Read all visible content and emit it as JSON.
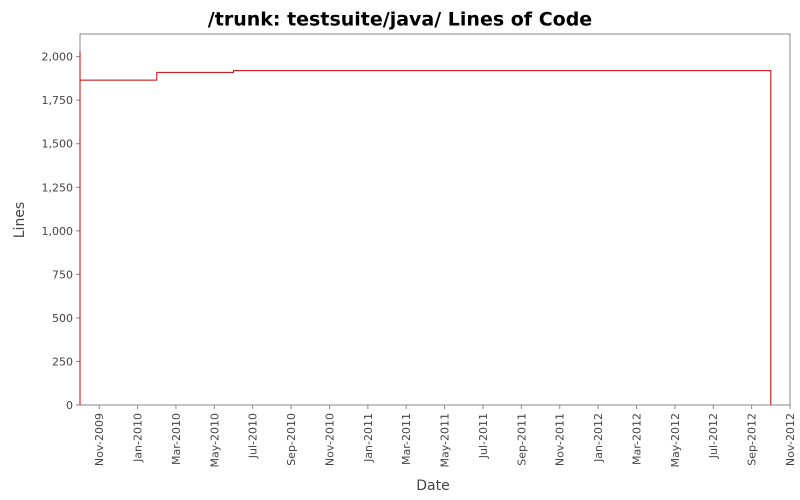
{
  "chart_data": {
    "type": "step",
    "title": "/trunk: testsuite/java/ Lines of Code",
    "x_label": "Date",
    "y_label": "Lines",
    "series": [
      {
        "name": "Lines",
        "color": "#cc0000",
        "x": [
          "2009-10",
          "2009-10",
          "2009-10",
          "2009-10",
          "2010-02",
          "2010-06",
          "2012-10"
        ],
        "values": [
          0,
          1970,
          2030,
          1865,
          1910,
          1920,
          0
        ]
      }
    ],
    "xlim": [
      "2009-10",
      "2012-11"
    ],
    "xticks": [
      {
        "value": "2009-11",
        "label": "Nov-2009"
      },
      {
        "value": "2010-01",
        "label": "Jan-2010"
      },
      {
        "value": "2010-03",
        "label": "Mar-2010"
      },
      {
        "value": "2010-05",
        "label": "May-2010"
      },
      {
        "value": "2010-07",
        "label": "Jul-2010"
      },
      {
        "value": "2010-09",
        "label": "Sep-2010"
      },
      {
        "value": "2010-11",
        "label": "Nov-2010"
      },
      {
        "value": "2011-01",
        "label": "Jan-2011"
      },
      {
        "value": "2011-03",
        "label": "Mar-2011"
      },
      {
        "value": "2011-05",
        "label": "May-2011"
      },
      {
        "value": "2011-07",
        "label": "Jul-2011"
      },
      {
        "value": "2011-09",
        "label": "Sep-2011"
      },
      {
        "value": "2011-11",
        "label": "Nov-2011"
      },
      {
        "value": "2012-01",
        "label": "Jan-2012"
      },
      {
        "value": "2012-03",
        "label": "Mar-2012"
      },
      {
        "value": "2012-05",
        "label": "May-2012"
      },
      {
        "value": "2012-07",
        "label": "Jul-2012"
      },
      {
        "value": "2012-09",
        "label": "Sep-2012"
      },
      {
        "value": "2012-11",
        "label": "Nov-2012"
      }
    ],
    "ylim": [
      0,
      2130
    ],
    "yticks": [
      0,
      250,
      500,
      750,
      {
        "value": 1000,
        "label": "1,000"
      },
      {
        "value": 1250,
        "label": "1,250"
      },
      {
        "value": 1500,
        "label": "1,500"
      },
      {
        "value": 1750,
        "label": "1,750"
      },
      {
        "value": 2000,
        "label": "2,000"
      }
    ]
  }
}
